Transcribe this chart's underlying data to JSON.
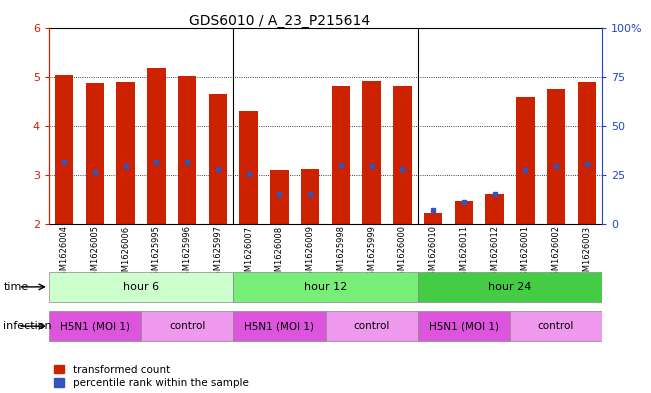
{
  "title": "GDS6010 / A_23_P215614",
  "samples": [
    "GSM1626004",
    "GSM1626005",
    "GSM1626006",
    "GSM1625995",
    "GSM1625996",
    "GSM1625997",
    "GSM1626007",
    "GSM1626008",
    "GSM1626009",
    "GSM1625998",
    "GSM1625999",
    "GSM1626000",
    "GSM1626010",
    "GSM1626011",
    "GSM1626012",
    "GSM1626001",
    "GSM1626002",
    "GSM1626003"
  ],
  "bar_top": [
    5.03,
    4.88,
    4.9,
    5.18,
    5.02,
    4.65,
    4.3,
    3.1,
    3.12,
    4.8,
    4.92,
    4.8,
    2.22,
    2.47,
    2.62,
    4.58,
    4.75,
    4.9
  ],
  "bar_bottom": [
    2.0,
    2.0,
    2.0,
    2.0,
    2.0,
    2.0,
    2.0,
    2.0,
    2.0,
    2.0,
    2.0,
    2.0,
    2.0,
    2.0,
    2.0,
    2.0,
    2.0,
    2.0
  ],
  "percentile_y": [
    3.27,
    3.05,
    3.18,
    3.27,
    3.27,
    3.12,
    3.02,
    2.62,
    2.62,
    3.2,
    3.18,
    3.12,
    2.28,
    2.45,
    2.62,
    3.1,
    3.18,
    3.22
  ],
  "ylim_left": [
    2.0,
    6.0
  ],
  "ylim_right": [
    0,
    100
  ],
  "yticks_left": [
    2,
    3,
    4,
    5,
    6
  ],
  "yticks_right": [
    0,
    25,
    50,
    75,
    100
  ],
  "bar_color": "#cc2200",
  "percentile_color": "#3355bb",
  "bar_width": 0.6,
  "time_groups": [
    {
      "label": "hour 6",
      "start": 0,
      "end": 5,
      "color": "#ccffcc"
    },
    {
      "label": "hour 12",
      "start": 6,
      "end": 11,
      "color": "#77ee77"
    },
    {
      "label": "hour 24",
      "start": 12,
      "end": 17,
      "color": "#44cc44"
    }
  ],
  "infection_groups": [
    {
      "label": "H5N1 (MOI 1)",
      "start": 0,
      "end": 2,
      "color": "#dd55dd"
    },
    {
      "label": "control",
      "start": 3,
      "end": 5,
      "color": "#ee99ee"
    },
    {
      "label": "H5N1 (MOI 1)",
      "start": 6,
      "end": 8,
      "color": "#dd55dd"
    },
    {
      "label": "control",
      "start": 9,
      "end": 11,
      "color": "#ee99ee"
    },
    {
      "label": "H5N1 (MOI 1)",
      "start": 12,
      "end": 14,
      "color": "#dd55dd"
    },
    {
      "label": "control",
      "start": 15,
      "end": 17,
      "color": "#ee99ee"
    }
  ],
  "left_axis_color": "#cc2200",
  "right_axis_color": "#2244cc",
  "section_dividers": [
    5.5,
    11.5
  ]
}
